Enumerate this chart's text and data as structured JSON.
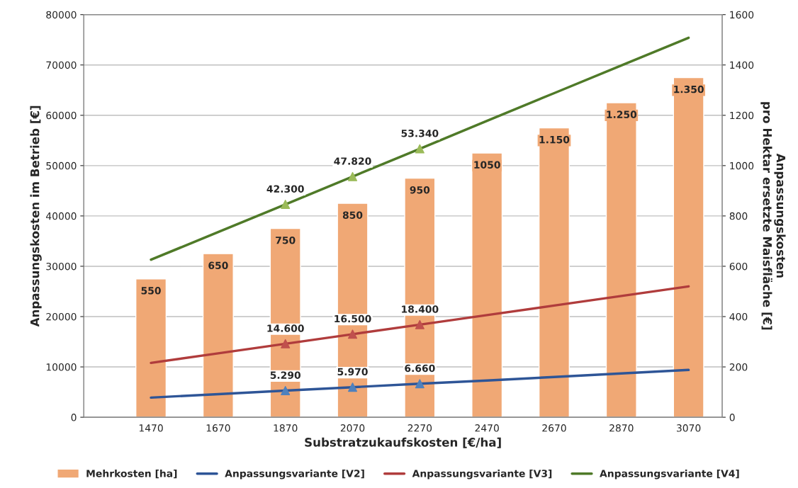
{
  "chart_data": {
    "type": "bar",
    "xlabel": "Substratzukaufskosten [€/ha]",
    "ylabel": "Anpassungskosten im Betrieb [€]",
    "y2label": "Anpassungskosten\npro Hektar ersetzte Maisfläche [€]",
    "categories": [
      "1470",
      "1670",
      "1870",
      "2070",
      "2270",
      "2470",
      "2670",
      "2870",
      "3070"
    ],
    "series": [
      {
        "name": "Mehrkosten [ha]",
        "axis": "y2",
        "color": "#f0a875",
        "values": [
          550,
          650,
          750,
          850,
          950,
          1050,
          1150,
          1250,
          1350
        ],
        "value_labels": [
          "550",
          "650",
          "750",
          "850",
          "950",
          "1050",
          "1.150",
          "1.250",
          "1.350"
        ]
      },
      {
        "name": "Anpassungsvariante [V2]",
        "type": "line",
        "color": "#2e5597",
        "values": [
          3900,
          4600,
          5290,
          5970,
          6660,
          7300,
          8000,
          8700,
          9400
        ]
      },
      {
        "name": "Anpassungsvariante [V3]",
        "type": "line",
        "color": "#b03c3c",
        "values": [
          10800,
          12700,
          14600,
          16500,
          18400,
          20300,
          22200,
          24100,
          26000
        ]
      },
      {
        "name": "Anpassungsvariante [V4]",
        "type": "line",
        "color": "#4f7a28",
        "values": [
          31300,
          36800,
          42300,
          47820,
          53340,
          58900,
          64400,
          69900,
          75400
        ]
      },
      {
        "type": "scatter",
        "marker": "triangle",
        "color": "#4f81bd",
        "values": [
          null,
          null,
          5290,
          5970,
          6660,
          null,
          null,
          null,
          null
        ],
        "value_labels": [
          null,
          null,
          "5.290",
          "5.970",
          "6.660",
          null,
          null,
          null,
          null
        ]
      },
      {
        "type": "scatter",
        "marker": "triangle",
        "color": "#c0504d",
        "values": [
          null,
          null,
          14600,
          16500,
          18400,
          null,
          null,
          null,
          null
        ],
        "value_labels": [
          null,
          null,
          "14.600",
          "16.500",
          "18.400",
          null,
          null,
          null,
          null
        ]
      },
      {
        "type": "scatter",
        "marker": "triangle",
        "color": "#9bbb59",
        "values": [
          null,
          null,
          42300,
          47820,
          53340,
          null,
          null,
          null,
          null
        ],
        "value_labels": [
          null,
          null,
          "42.300",
          "47.820",
          "53.340",
          null,
          null,
          null,
          null
        ]
      }
    ],
    "ylim": [
      0,
      80000
    ],
    "yticks": [
      0,
      10000,
      20000,
      30000,
      40000,
      50000,
      60000,
      70000,
      80000
    ],
    "y2lim": [
      0,
      1600
    ],
    "y2ticks": [
      0,
      200,
      400,
      600,
      800,
      1000,
      1200,
      1400,
      1600
    ],
    "grid": "y",
    "legend": "bottom"
  }
}
